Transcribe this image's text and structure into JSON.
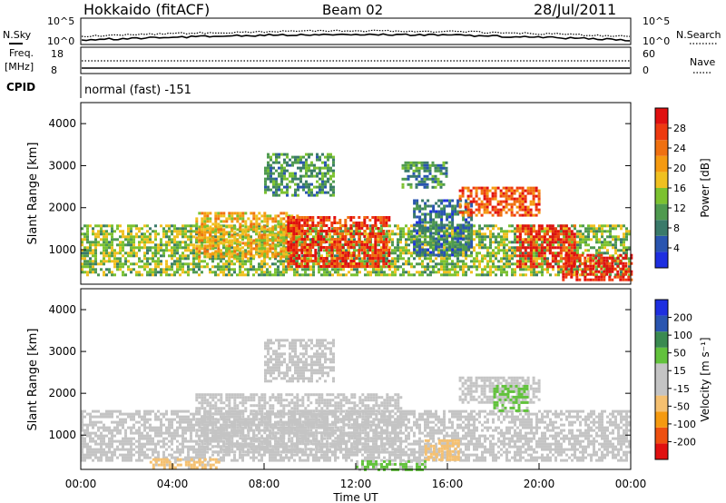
{
  "header": {
    "station": "Hokkaido (fitACF)",
    "beam": "Beam 02",
    "date": "28/Jul/2011"
  },
  "noise_panel": {
    "left_label": "N.Sky",
    "right_label": "N.Search",
    "left_ticks": [
      "10^5",
      "10^0"
    ],
    "right_ticks": [
      "10^5",
      "10^0"
    ]
  },
  "freq_panel": {
    "left_label_1": "Freq.",
    "left_label_2": "[MHz]",
    "right_label": "Nave",
    "left_ticks": [
      "18",
      "8"
    ],
    "right_ticks": [
      "60",
      "0"
    ]
  },
  "cpid": {
    "label": "CPID",
    "value": "normal (fast) -151"
  },
  "colors": {
    "power": [
      "#1e2fe0",
      "#2a55b0",
      "#3a7a6a",
      "#4f9a4f",
      "#7cc230",
      "#f0c020",
      "#f59a10",
      "#f07010",
      "#ee3a10",
      "#e01010"
    ],
    "velocity": [
      "#e01010",
      "#ee5010",
      "#f59a10",
      "#f5c070",
      "#c4c4c4",
      "#c4c4c4",
      "#62c23c",
      "#3a8a50",
      "#2a55b0",
      "#1e2fe0"
    ]
  },
  "chart_data": [
    {
      "type": "heatmap",
      "name": "power",
      "xlabel": "",
      "ylabel": "Slant Range [km]",
      "y_ticks": [
        "4000",
        "3000",
        "2000",
        "1000"
      ],
      "colorbar": {
        "label": "Power [dB]",
        "ticks": [
          "28",
          "24",
          "20",
          "16",
          "12",
          "8",
          "4"
        ],
        "range": [
          0,
          30
        ]
      },
      "x_range_hours": [
        0,
        24
      ],
      "y_range_km": [
        180,
        4500
      ],
      "regions": [
        {
          "t0": 0.0,
          "t1": 24.0,
          "r0": 400,
          "r1": 1600,
          "level": 13
        },
        {
          "t0": 5.0,
          "t1": 9.5,
          "r0": 800,
          "r1": 1900,
          "level": 18
        },
        {
          "t0": 9.0,
          "t1": 13.5,
          "r0": 600,
          "r1": 1800,
          "level": 26
        },
        {
          "t0": 14.5,
          "t1": 17.0,
          "r0": 900,
          "r1": 2200,
          "level": 7
        },
        {
          "t0": 16.5,
          "t1": 20.0,
          "r0": 1800,
          "r1": 2500,
          "level": 24
        },
        {
          "t0": 19.0,
          "t1": 21.5,
          "r0": 600,
          "r1": 1600,
          "level": 27
        },
        {
          "t0": 21.0,
          "t1": 24.0,
          "r0": 300,
          "r1": 900,
          "level": 28
        },
        {
          "t0": 8.0,
          "t1": 11.0,
          "r0": 2300,
          "r1": 3300,
          "level": 10
        },
        {
          "t0": 14.0,
          "t1": 16.0,
          "r0": 2500,
          "r1": 3100,
          "level": 9
        }
      ]
    },
    {
      "type": "heatmap",
      "name": "velocity",
      "xlabel": "Time UT",
      "ylabel": "Slant Range [km]",
      "y_ticks": [
        "4000",
        "3000",
        "2000",
        "1000"
      ],
      "x_ticks": [
        "00:00",
        "04:00",
        "08:00",
        "12:00",
        "16:00",
        "20:00",
        "00:00"
      ],
      "colorbar": {
        "label": "Velocity [m s⁻¹]",
        "ticks": [
          "200",
          "100",
          "50",
          "15",
          "-15",
          "-50",
          "-100",
          "-200"
        ],
        "range": [
          -250,
          250
        ]
      },
      "x_range_hours": [
        0,
        24
      ],
      "y_range_km": [
        180,
        4500
      ],
      "regions": [
        {
          "t0": 0.0,
          "t1": 24.0,
          "r0": 400,
          "r1": 1600,
          "level": 0
        },
        {
          "t0": 5.0,
          "t1": 14.0,
          "r0": 600,
          "r1": 2000,
          "level": 0
        },
        {
          "t0": 16.5,
          "t1": 20.0,
          "r0": 1800,
          "r1": 2400,
          "level": 0
        },
        {
          "t0": 18.0,
          "t1": 19.5,
          "r0": 1600,
          "r1": 2200,
          "level": 60
        },
        {
          "t0": 15.0,
          "t1": 16.5,
          "r0": 400,
          "r1": 900,
          "level": -70
        },
        {
          "t0": 3.0,
          "t1": 6.0,
          "r0": 200,
          "r1": 450,
          "level": -60
        },
        {
          "t0": 12.0,
          "t1": 15.0,
          "r0": 180,
          "r1": 400,
          "level": 60
        },
        {
          "t0": 8.0,
          "t1": 11.0,
          "r0": 2300,
          "r1": 3300,
          "level": -30
        }
      ]
    }
  ]
}
